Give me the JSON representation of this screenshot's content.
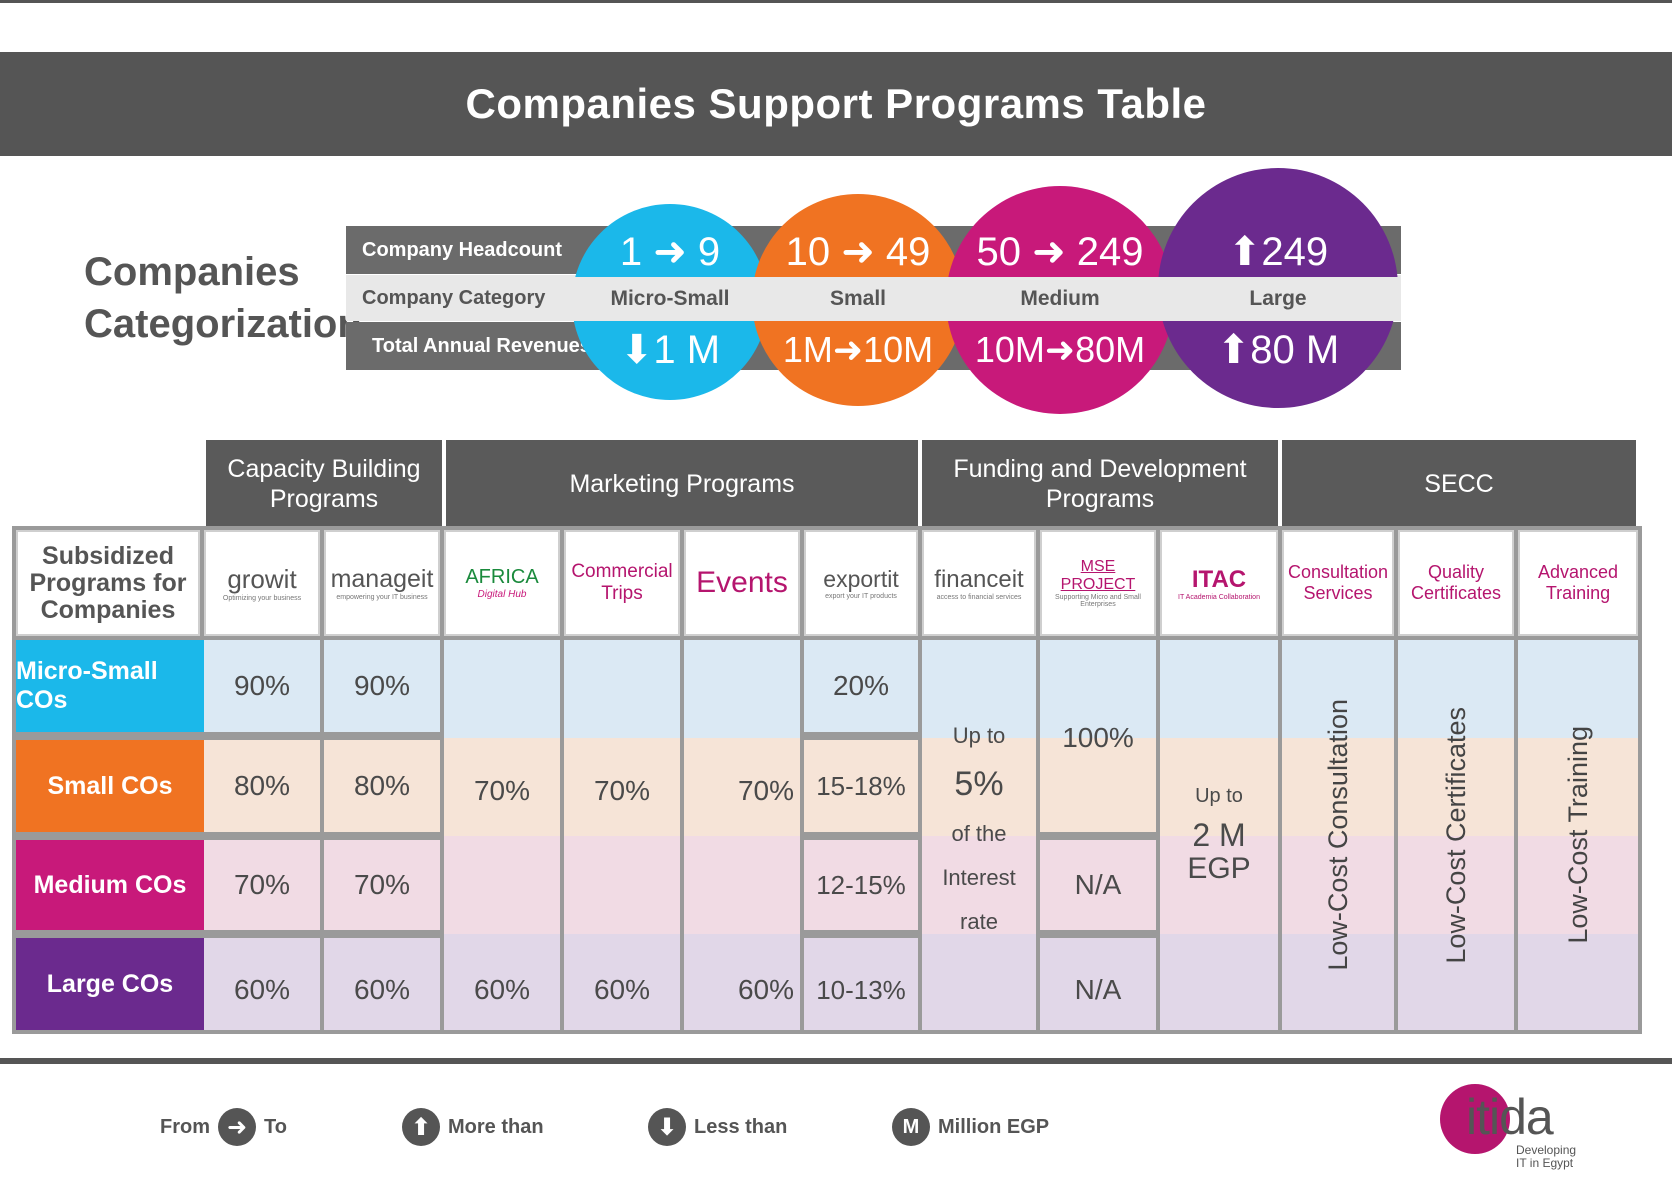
{
  "title": "Companies Support Programs Table",
  "categorization": {
    "title_line1": "Companies",
    "title_line2": "Categorization",
    "row_labels": [
      "Company Headcount",
      "Company Category",
      "Total Annual Revenues"
    ],
    "categories": [
      {
        "headcount": "1 ➜ 9",
        "category": "Micro-Small",
        "revenue": "⬇1 M",
        "color": "#1bb8ea"
      },
      {
        "headcount": "10 ➜ 49",
        "category": "Small",
        "revenue": "1M➜10M",
        "color": "#f07322"
      },
      {
        "headcount": "50 ➜ 249",
        "category": "Medium",
        "revenue": "10M➜80M",
        "color": "#c8197a"
      },
      {
        "headcount": "⬆249",
        "category": "Large",
        "revenue": "⬆80 M",
        "color": "#6b2a8e"
      }
    ]
  },
  "groups": [
    "Capacity Building Programs",
    "Marketing Programs",
    "Funding and Development Programs",
    "SECC"
  ],
  "corner_label": "Subsidized Programs for Companies",
  "programs": [
    {
      "name": "growit",
      "tagline": "Optimizing your business",
      "color": "#555555"
    },
    {
      "name": "manageit",
      "tagline": "empowering your IT business",
      "color": "#555555"
    },
    {
      "name": "AFRICA",
      "tagline": "Digital Hub",
      "color": "#1a8a3c"
    },
    {
      "name": "Commercial Trips",
      "color": "#b5156e"
    },
    {
      "name": "Events",
      "color": "#b5156e"
    },
    {
      "name": "exportit",
      "tagline": "export your IT products",
      "color": "#555555"
    },
    {
      "name": "financeit",
      "tagline": "access to financial services",
      "color": "#555555"
    },
    {
      "name": "MSE PROJECT",
      "tagline": "Supporting Micro and Small Enterprises",
      "color": "#b5156e"
    },
    {
      "name": "ITAC",
      "tagline": "IT Academia Collaboration",
      "color": "#b5156e"
    },
    {
      "name": "Consultation Services",
      "color": "#b5156e"
    },
    {
      "name": "Quality Certificates",
      "color": "#b5156e"
    },
    {
      "name": "Advanced Training",
      "color": "#b5156e"
    }
  ],
  "rows": [
    {
      "label": "Micro-Small COs",
      "color": "#1bb8ea",
      "bg": "#dbe9f4",
      "growit": "90%",
      "manageit": "90%",
      "africa": "",
      "trips": "",
      "events": "",
      "exportit": "20%"
    },
    {
      "label": "Small COs",
      "color": "#f07322",
      "bg": "#f6e4d7",
      "growit": "80%",
      "manageit": "80%",
      "africa": "70%",
      "trips": "70%",
      "events": "70%",
      "exportit": "15-18%"
    },
    {
      "label": "Medium COs",
      "color": "#c8197a",
      "bg": "#f1dbe4",
      "growit": "70%",
      "manageit": "70%",
      "africa": "",
      "trips": "",
      "events": "",
      "exportit": "12-15%"
    },
    {
      "label": "Large COs",
      "color": "#6b2a8e",
      "bg": "#e1d7e8",
      "growit": "60%",
      "manageit": "60%",
      "africa": "60%",
      "trips": "60%",
      "events": "60%",
      "exportit": "10-13%"
    }
  ],
  "financeit": {
    "line1": "Up to",
    "line2": "5%",
    "line3": "of the",
    "line4": "Interest",
    "line5": "rate"
  },
  "mse": {
    "micro_small": "100%",
    "medium": "N/A",
    "large": "N/A"
  },
  "itac": {
    "line1": "Up to",
    "line2": "2 M",
    "line3": "EGP"
  },
  "secc": [
    "Low-Cost Consultation",
    "Low-Cost Certificates",
    "Low-Cost Training"
  ],
  "legend": {
    "from": "From",
    "to": "To",
    "more_than": "More than",
    "less_than": "Less than",
    "million_symbol": "M",
    "million": "Million EGP"
  },
  "logo": {
    "brand": "itida",
    "tagline_line1": "Developing",
    "tagline_line2": "IT in Egypt",
    "color": "#b5156e"
  }
}
